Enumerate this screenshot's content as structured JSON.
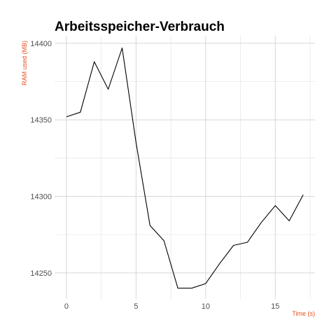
{
  "chart_data": {
    "type": "line",
    "title": "Arbeitsspeicher-Verbrauch",
    "xlabel": "Time (s)",
    "ylabel": "RAM used (MB)",
    "xlim": [
      -0.85,
      17.85
    ],
    "ylim": [
      14233,
      14405
    ],
    "x_ticks": [
      0,
      5,
      10,
      15
    ],
    "y_ticks": [
      14250,
      14300,
      14350,
      14400
    ],
    "grid": true,
    "axis_title_color": "#e8501f",
    "line_color": "#000000",
    "series": [
      {
        "x": [
          0,
          1,
          2,
          3,
          4,
          5,
          6,
          7,
          8,
          9,
          10,
          11,
          12,
          13,
          14,
          15,
          16,
          17
        ],
        "values": [
          14352,
          14355,
          14388,
          14370,
          14397,
          14335,
          14281,
          14271,
          14240,
          14240,
          14243,
          14256,
          14268,
          14270,
          14283,
          14294,
          14284,
          14301
        ]
      }
    ]
  }
}
